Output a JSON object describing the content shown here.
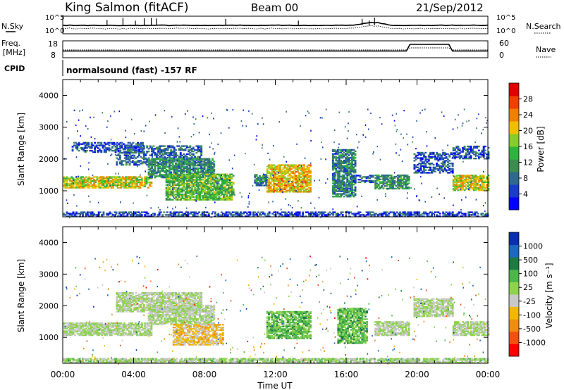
{
  "header": {
    "station": "King Salmon (fitACF)",
    "beam": "Beam 00",
    "date": "21/Sep/2012"
  },
  "status_panels": {
    "nsky_label": "N.Sky",
    "nsearch_label": "N.Search",
    "noise_ticks": [
      "10^5",
      "10^0"
    ],
    "freq_label": "Freq.",
    "freq_unit": "[MHz]",
    "freq_ticks": [
      "18",
      "8"
    ],
    "nave_label": "Nave",
    "nave_ticks": [
      "60",
      "0"
    ],
    "cpid_label": "CPID",
    "cpid_text": "normalsound (fast) -157 RF"
  },
  "colors": {
    "power_scale": [
      "#0000ff",
      "#1a3cc8",
      "#2f6a8e",
      "#3c8c50",
      "#2fb33f",
      "#86cc2d",
      "#f0c000",
      "#f08000",
      "#f04000",
      "#e00000"
    ],
    "velocity_scale": [
      "#0b2fb0",
      "#1d68c0",
      "#1e7a40",
      "#4db64a",
      "#8ed24e",
      "#c8c8c8",
      "#f0b800",
      "#f08c10",
      "#f05010",
      "#ff0000"
    ]
  },
  "chart_data": [
    {
      "type": "heatmap",
      "panel": "power",
      "ylabel": "Slant Range [km]",
      "ylim": [
        180,
        4500
      ],
      "yticks": [
        "1000",
        "2000",
        "3000",
        "4000"
      ],
      "colorbar_label": "Power [dB]",
      "colorbar_ticks": [
        "28",
        "24",
        "20",
        "16",
        "12",
        "8",
        "4"
      ],
      "colorbar_range": [
        0,
        30
      ],
      "regions": [
        {
          "t": [
            0.0,
            5.0
          ],
          "r": [
            1080,
            1430
          ],
          "v": 18
        },
        {
          "t": [
            0.5,
            4.5
          ],
          "r": [
            2200,
            2500
          ],
          "v": 6
        },
        {
          "t": [
            3.0,
            7.8
          ],
          "r": [
            1800,
            2400
          ],
          "v": 7
        },
        {
          "t": [
            4.8,
            8.5
          ],
          "r": [
            1400,
            2000
          ],
          "v": 10
        },
        {
          "t": [
            5.8,
            9.6
          ],
          "r": [
            700,
            1500
          ],
          "v": 14
        },
        {
          "t": [
            11.5,
            14.0
          ],
          "r": [
            950,
            1800
          ],
          "v": 20
        },
        {
          "t": [
            10.8,
            11.5
          ],
          "r": [
            1150,
            1500
          ],
          "v": 9
        },
        {
          "t": [
            15.2,
            16.5
          ],
          "r": [
            800,
            2300
          ],
          "v": 9
        },
        {
          "t": [
            16.2,
            17.5
          ],
          "r": [
            1250,
            1500
          ],
          "v": 6
        },
        {
          "t": [
            17.6,
            19.5
          ],
          "r": [
            1050,
            1500
          ],
          "v": 11
        },
        {
          "t": [
            19.8,
            22.0
          ],
          "r": [
            1550,
            2200
          ],
          "v": 6
        },
        {
          "t": [
            22.0,
            24.0
          ],
          "r": [
            1000,
            1500
          ],
          "v": 18
        },
        {
          "t": [
            22.0,
            24.0
          ],
          "r": [
            2000,
            2400
          ],
          "v": 6
        },
        {
          "t": [
            0.0,
            24.0
          ],
          "r": [
            180,
            320
          ],
          "v": 5
        }
      ]
    },
    {
      "type": "heatmap",
      "panel": "velocity",
      "ylabel": "Slant Range [km]",
      "ylim": [
        180,
        4500
      ],
      "yticks": [
        "1000",
        "2000",
        "3000",
        "4000"
      ],
      "xlabel": "Time UT",
      "xticks": [
        "00:00",
        "04:00",
        "08:00",
        "12:00",
        "16:00",
        "20:00",
        "00:00"
      ],
      "xlim": [
        0,
        24
      ],
      "colorbar_label": "Velocity [m s⁻¹]",
      "colorbar_ticks": [
        "1000",
        "500",
        "100",
        "25",
        "-25",
        "-100",
        "-500",
        "-1000"
      ],
      "colorbar_range": [
        -1200,
        1200
      ],
      "regions": [
        {
          "t": [
            0.0,
            5.0
          ],
          "r": [
            1050,
            1450
          ],
          "v": 0
        },
        {
          "t": [
            3.0,
            7.8
          ],
          "r": [
            1800,
            2400
          ],
          "v": 0
        },
        {
          "t": [
            4.8,
            8.5
          ],
          "r": [
            1400,
            2000
          ],
          "v": 0
        },
        {
          "t": [
            6.2,
            9.0
          ],
          "r": [
            750,
            1400
          ],
          "v": -300
        },
        {
          "t": [
            11.5,
            14.0
          ],
          "r": [
            950,
            1800
          ],
          "v": 300
        },
        {
          "t": [
            15.5,
            17.2
          ],
          "r": [
            800,
            1900
          ],
          "v": 300
        },
        {
          "t": [
            17.6,
            19.5
          ],
          "r": [
            1050,
            1500
          ],
          "v": 0
        },
        {
          "t": [
            19.8,
            22.0
          ],
          "r": [
            1650,
            2200
          ],
          "v": 0
        },
        {
          "t": [
            22.0,
            24.0
          ],
          "r": [
            1050,
            1500
          ],
          "v": 0
        },
        {
          "t": [
            0.0,
            24.0
          ],
          "r": [
            180,
            320
          ],
          "v": 60
        }
      ]
    }
  ]
}
